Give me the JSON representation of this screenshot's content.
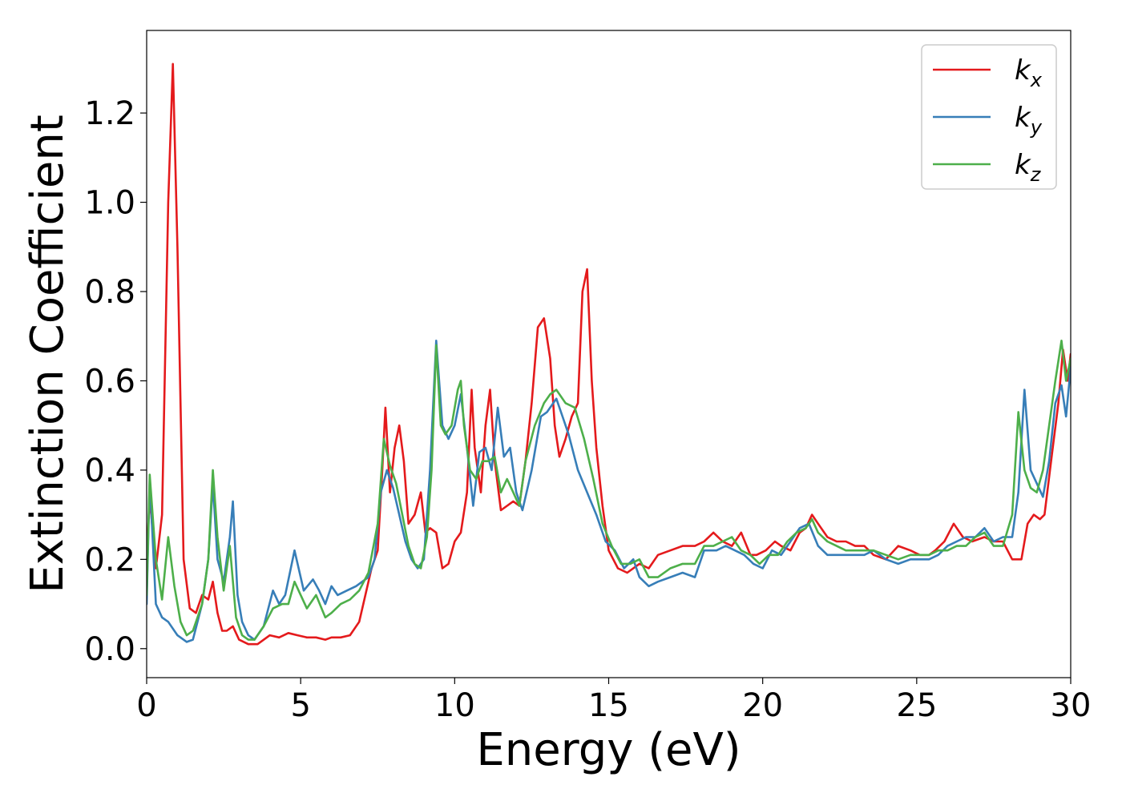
{
  "chart_data": {
    "type": "line",
    "xlabel": "Energy (eV)",
    "ylabel": "Extinction Coefficient",
    "xlim": [
      0,
      30
    ],
    "ylim": [
      -0.065,
      1.385
    ],
    "xticks": [
      0,
      5,
      10,
      15,
      20,
      25,
      30
    ],
    "xtick_labels": [
      "0",
      "5",
      "10",
      "15",
      "20",
      "25",
      "30"
    ],
    "yticks": [
      0.0,
      0.2,
      0.4,
      0.6,
      0.8,
      1.0,
      1.2
    ],
    "ytick_labels": [
      "0.0",
      "0.2",
      "0.4",
      "0.6",
      "0.8",
      "1.0",
      "1.2"
    ],
    "grid": false,
    "legend_position": "top-right",
    "series": [
      {
        "name": "k_x",
        "label_base": "k",
        "label_sub": "x",
        "color": "#e41a1c",
        "x": [
          0,
          0.1,
          0.3,
          0.5,
          0.7,
          0.85,
          1.0,
          1.2,
          1.4,
          1.6,
          1.8,
          2.0,
          2.15,
          2.3,
          2.45,
          2.6,
          2.8,
          3.0,
          3.3,
          3.6,
          4.0,
          4.3,
          4.6,
          4.9,
          5.2,
          5.5,
          5.8,
          6.0,
          6.3,
          6.6,
          6.9,
          7.1,
          7.3,
          7.5,
          7.65,
          7.75,
          7.9,
          8.05,
          8.2,
          8.35,
          8.5,
          8.7,
          8.9,
          9.05,
          9.2,
          9.4,
          9.6,
          9.8,
          10.0,
          10.2,
          10.4,
          10.55,
          10.65,
          10.85,
          11.0,
          11.15,
          11.3,
          11.5,
          11.7,
          11.9,
          12.1,
          12.3,
          12.5,
          12.7,
          12.9,
          13.1,
          13.25,
          13.4,
          13.6,
          13.8,
          14.0,
          14.15,
          14.3,
          14.45,
          14.6,
          14.8,
          15.0,
          15.3,
          15.6,
          16.0,
          16.3,
          16.6,
          17.0,
          17.4,
          17.8,
          18.1,
          18.4,
          18.7,
          19.0,
          19.3,
          19.6,
          19.8,
          20.1,
          20.4,
          20.6,
          20.9,
          21.2,
          21.4,
          21.6,
          21.8,
          22.1,
          22.4,
          22.7,
          23.0,
          23.3,
          23.6,
          24.0,
          24.4,
          24.8,
          25.1,
          25.4,
          25.6,
          25.9,
          26.2,
          26.5,
          26.8,
          27.2,
          27.5,
          27.8,
          28.1,
          28.4,
          28.6,
          28.8,
          29.0,
          29.15,
          29.4,
          29.6,
          29.75,
          29.9,
          30.0
        ],
        "values": [
          0.2,
          0.34,
          0.18,
          0.3,
          1.0,
          1.31,
          0.9,
          0.2,
          0.09,
          0.08,
          0.12,
          0.11,
          0.15,
          0.08,
          0.04,
          0.04,
          0.05,
          0.02,
          0.01,
          0.01,
          0.03,
          0.025,
          0.035,
          0.03,
          0.025,
          0.025,
          0.02,
          0.025,
          0.025,
          0.03,
          0.06,
          0.12,
          0.18,
          0.22,
          0.4,
          0.54,
          0.35,
          0.45,
          0.5,
          0.42,
          0.28,
          0.3,
          0.35,
          0.26,
          0.27,
          0.26,
          0.18,
          0.19,
          0.24,
          0.26,
          0.35,
          0.58,
          0.45,
          0.35,
          0.5,
          0.58,
          0.42,
          0.31,
          0.32,
          0.33,
          0.32,
          0.42,
          0.55,
          0.72,
          0.74,
          0.65,
          0.5,
          0.43,
          0.47,
          0.52,
          0.55,
          0.8,
          0.85,
          0.6,
          0.45,
          0.32,
          0.22,
          0.18,
          0.17,
          0.19,
          0.18,
          0.21,
          0.22,
          0.23,
          0.23,
          0.24,
          0.26,
          0.24,
          0.23,
          0.26,
          0.21,
          0.21,
          0.22,
          0.24,
          0.23,
          0.22,
          0.26,
          0.27,
          0.3,
          0.28,
          0.25,
          0.24,
          0.24,
          0.23,
          0.23,
          0.21,
          0.2,
          0.23,
          0.22,
          0.21,
          0.21,
          0.22,
          0.24,
          0.28,
          0.25,
          0.24,
          0.25,
          0.24,
          0.24,
          0.2,
          0.2,
          0.28,
          0.3,
          0.29,
          0.3,
          0.44,
          0.55,
          0.67,
          0.6,
          0.66
        ]
      },
      {
        "name": "k_y",
        "label_base": "k",
        "label_sub": "y",
        "color": "#377eb8",
        "x": [
          0,
          0.1,
          0.3,
          0.5,
          0.7,
          1.0,
          1.3,
          1.5,
          1.8,
          2.0,
          2.15,
          2.3,
          2.5,
          2.7,
          2.8,
          2.95,
          3.1,
          3.3,
          3.5,
          3.8,
          4.1,
          4.3,
          4.5,
          4.8,
          5.1,
          5.4,
          5.6,
          5.8,
          6.0,
          6.2,
          6.5,
          6.8,
          7.0,
          7.2,
          7.4,
          7.6,
          7.8,
          8.0,
          8.2,
          8.4,
          8.6,
          8.8,
          9.0,
          9.2,
          9.4,
          9.6,
          9.8,
          10.0,
          10.2,
          10.4,
          10.6,
          10.8,
          11.0,
          11.2,
          11.4,
          11.6,
          11.8,
          12.0,
          12.2,
          12.5,
          12.8,
          13.0,
          13.3,
          13.5,
          13.7,
          14.0,
          14.3,
          14.6,
          14.9,
          15.2,
          15.5,
          15.8,
          16.0,
          16.3,
          16.6,
          17.0,
          17.4,
          17.8,
          18.1,
          18.5,
          18.8,
          19.1,
          19.4,
          19.7,
          20.0,
          20.3,
          20.6,
          20.9,
          21.2,
          21.5,
          21.8,
          22.1,
          22.4,
          22.7,
          23.0,
          23.3,
          23.6,
          24.0,
          24.4,
          24.8,
          25.1,
          25.4,
          25.7,
          26.0,
          26.3,
          26.6,
          26.9,
          27.2,
          27.5,
          27.8,
          28.1,
          28.3,
          28.5,
          28.7,
          28.9,
          29.1,
          29.3,
          29.5,
          29.7,
          29.85,
          30.0
        ],
        "values": [
          0.1,
          0.38,
          0.1,
          0.07,
          0.06,
          0.03,
          0.015,
          0.02,
          0.1,
          0.2,
          0.37,
          0.2,
          0.15,
          0.25,
          0.33,
          0.12,
          0.06,
          0.03,
          0.02,
          0.05,
          0.13,
          0.1,
          0.12,
          0.22,
          0.13,
          0.155,
          0.13,
          0.1,
          0.14,
          0.12,
          0.13,
          0.14,
          0.15,
          0.16,
          0.2,
          0.35,
          0.4,
          0.36,
          0.3,
          0.24,
          0.2,
          0.18,
          0.2,
          0.4,
          0.69,
          0.5,
          0.47,
          0.5,
          0.57,
          0.45,
          0.32,
          0.44,
          0.45,
          0.4,
          0.54,
          0.43,
          0.45,
          0.35,
          0.31,
          0.4,
          0.52,
          0.53,
          0.56,
          0.52,
          0.48,
          0.4,
          0.35,
          0.3,
          0.24,
          0.22,
          0.18,
          0.2,
          0.16,
          0.14,
          0.15,
          0.16,
          0.17,
          0.16,
          0.22,
          0.22,
          0.23,
          0.22,
          0.21,
          0.19,
          0.18,
          0.22,
          0.21,
          0.24,
          0.27,
          0.28,
          0.23,
          0.21,
          0.21,
          0.21,
          0.21,
          0.21,
          0.22,
          0.2,
          0.19,
          0.2,
          0.2,
          0.2,
          0.21,
          0.23,
          0.24,
          0.25,
          0.25,
          0.27,
          0.24,
          0.25,
          0.25,
          0.35,
          0.58,
          0.4,
          0.37,
          0.34,
          0.42,
          0.55,
          0.59,
          0.52,
          0.63
        ]
      },
      {
        "name": "k_z",
        "label_base": "k",
        "label_sub": "z",
        "color": "#4daf4a",
        "x": [
          0,
          0.1,
          0.3,
          0.5,
          0.7,
          0.9,
          1.1,
          1.3,
          1.5,
          1.8,
          2.0,
          2.15,
          2.3,
          2.5,
          2.7,
          2.9,
          3.1,
          3.3,
          3.5,
          3.8,
          4.1,
          4.4,
          4.6,
          4.8,
          5.0,
          5.2,
          5.5,
          5.8,
          6.0,
          6.3,
          6.6,
          6.9,
          7.2,
          7.5,
          7.7,
          7.9,
          8.1,
          8.3,
          8.5,
          8.7,
          8.9,
          9.1,
          9.25,
          9.4,
          9.55,
          9.7,
          9.9,
          10.1,
          10.2,
          10.3,
          10.5,
          10.7,
          10.9,
          11.1,
          11.3,
          11.5,
          11.7,
          11.9,
          12.1,
          12.3,
          12.6,
          12.9,
          13.1,
          13.3,
          13.6,
          13.9,
          14.2,
          14.5,
          14.8,
          15.1,
          15.4,
          15.7,
          16.0,
          16.3,
          16.6,
          17.0,
          17.4,
          17.8,
          18.1,
          18.4,
          18.7,
          19.0,
          19.3,
          19.6,
          19.9,
          20.2,
          20.5,
          20.8,
          21.1,
          21.4,
          21.6,
          21.8,
          22.1,
          22.4,
          22.7,
          23.0,
          23.3,
          23.6,
          24.0,
          24.4,
          24.8,
          25.1,
          25.4,
          25.7,
          26.0,
          26.3,
          26.6,
          26.9,
          27.2,
          27.5,
          27.8,
          28.1,
          28.3,
          28.5,
          28.7,
          28.9,
          29.1,
          29.3,
          29.5,
          29.7,
          29.85,
          30.0
        ],
        "values": [
          0.12,
          0.39,
          0.2,
          0.11,
          0.25,
          0.14,
          0.06,
          0.03,
          0.04,
          0.1,
          0.2,
          0.4,
          0.25,
          0.13,
          0.23,
          0.07,
          0.03,
          0.02,
          0.02,
          0.05,
          0.09,
          0.1,
          0.1,
          0.15,
          0.12,
          0.09,
          0.12,
          0.07,
          0.08,
          0.1,
          0.11,
          0.13,
          0.17,
          0.28,
          0.47,
          0.41,
          0.37,
          0.3,
          0.23,
          0.19,
          0.18,
          0.25,
          0.4,
          0.68,
          0.5,
          0.48,
          0.5,
          0.58,
          0.6,
          0.5,
          0.4,
          0.38,
          0.42,
          0.42,
          0.43,
          0.35,
          0.38,
          0.35,
          0.32,
          0.42,
          0.5,
          0.55,
          0.57,
          0.58,
          0.55,
          0.54,
          0.47,
          0.38,
          0.28,
          0.23,
          0.19,
          0.19,
          0.2,
          0.16,
          0.16,
          0.18,
          0.19,
          0.19,
          0.23,
          0.23,
          0.24,
          0.25,
          0.22,
          0.21,
          0.19,
          0.21,
          0.21,
          0.24,
          0.26,
          0.27,
          0.29,
          0.26,
          0.24,
          0.23,
          0.22,
          0.22,
          0.22,
          0.22,
          0.21,
          0.2,
          0.21,
          0.21,
          0.21,
          0.22,
          0.22,
          0.23,
          0.23,
          0.25,
          0.26,
          0.23,
          0.23,
          0.3,
          0.53,
          0.4,
          0.36,
          0.35,
          0.4,
          0.5,
          0.6,
          0.69,
          0.6,
          0.65
        ]
      }
    ]
  }
}
